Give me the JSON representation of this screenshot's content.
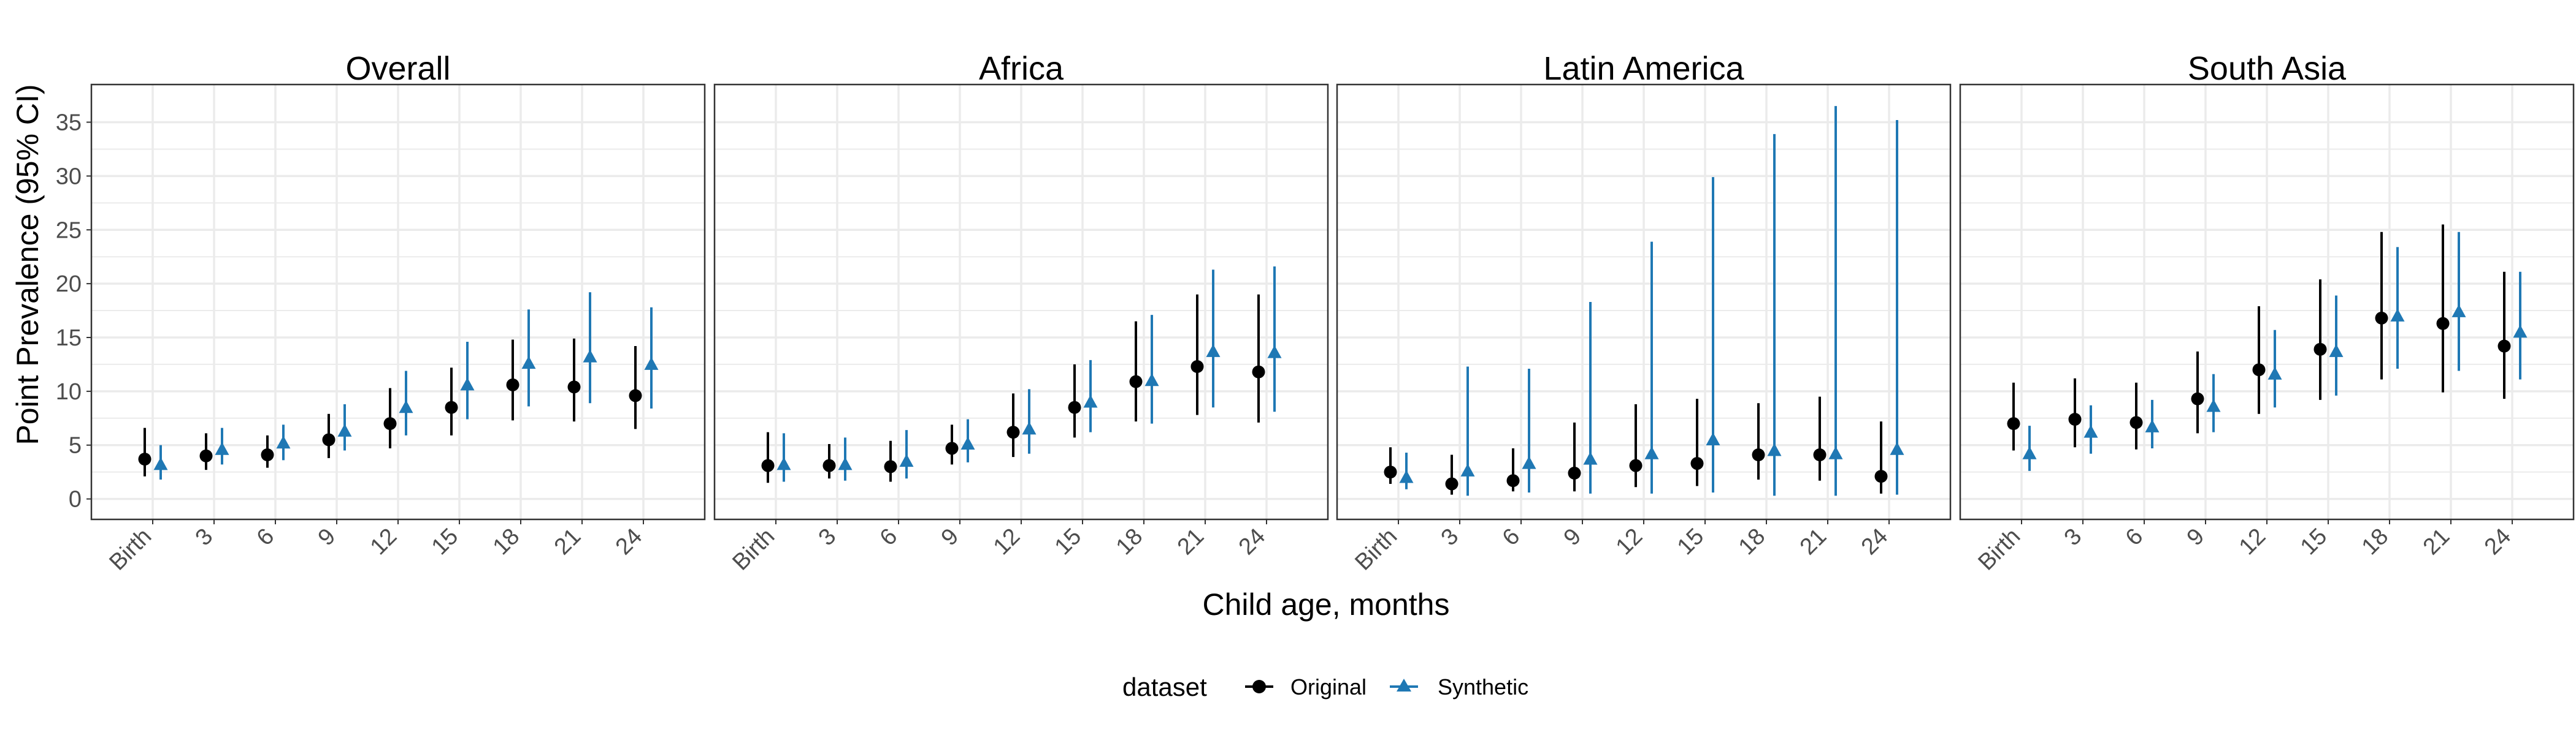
{
  "chart_data": {
    "type": "scatter",
    "facets": [
      {
        "title": "Overall",
        "series": [
          {
            "name": "Original",
            "values": [
              3.7,
              4.0,
              4.1,
              5.5,
              7.0,
              8.5,
              10.6,
              10.4,
              9.6
            ],
            "lower": [
              2.1,
              2.7,
              2.9,
              3.8,
              4.7,
              5.9,
              7.3,
              7.2,
              6.5
            ],
            "upper": [
              6.6,
              6.1,
              5.9,
              7.9,
              10.3,
              12.2,
              14.8,
              14.9,
              14.2
            ]
          },
          {
            "name": "Synthetic",
            "values": [
              3.2,
              4.6,
              5.2,
              6.3,
              8.5,
              10.6,
              12.6,
              13.2,
              12.5
            ],
            "lower": [
              1.8,
              3.2,
              3.6,
              4.5,
              5.9,
              7.4,
              8.6,
              8.9,
              8.4
            ],
            "upper": [
              5.0,
              6.6,
              6.9,
              8.8,
              11.9,
              14.6,
              17.6,
              19.2,
              17.8
            ]
          }
        ]
      },
      {
        "title": "Africa",
        "series": [
          {
            "name": "Original",
            "values": [
              3.1,
              3.1,
              3.0,
              4.7,
              6.2,
              8.5,
              10.9,
              12.3,
              11.8
            ],
            "lower": [
              1.5,
              1.9,
              1.6,
              3.2,
              3.9,
              5.7,
              7.2,
              7.8,
              7.1
            ],
            "upper": [
              6.2,
              5.1,
              5.4,
              6.9,
              9.8,
              12.5,
              16.5,
              19.0,
              19.0
            ]
          },
          {
            "name": "Synthetic",
            "values": [
              3.2,
              3.2,
              3.5,
              5.1,
              6.5,
              9.0,
              11.0,
              13.7,
              13.6
            ],
            "lower": [
              1.6,
              1.7,
              1.9,
              3.4,
              4.2,
              6.2,
              7.0,
              8.5,
              8.1
            ],
            "upper": [
              6.1,
              5.7,
              6.4,
              7.4,
              10.2,
              12.9,
              17.1,
              21.3,
              21.6
            ]
          }
        ]
      },
      {
        "title": "Latin America",
        "series": [
          {
            "name": "Original",
            "values": [
              2.5,
              1.4,
              1.7,
              2.4,
              3.1,
              3.3,
              4.1,
              4.1,
              2.1
            ],
            "lower": [
              1.4,
              0.4,
              0.7,
              0.7,
              1.1,
              1.2,
              1.8,
              1.7,
              0.5
            ],
            "upper": [
              4.8,
              4.1,
              4.7,
              7.1,
              8.8,
              9.3,
              8.9,
              9.5,
              7.2
            ]
          },
          {
            "name": "Synthetic",
            "values": [
              2.0,
              2.6,
              3.3,
              3.7,
              4.2,
              5.5,
              4.5,
              4.2,
              4.6
            ],
            "lower": [
              0.9,
              0.3,
              0.6,
              0.5,
              0.5,
              0.6,
              0.3,
              0.3,
              0.4
            ],
            "upper": [
              4.3,
              12.3,
              12.1,
              18.3,
              23.9,
              29.9,
              33.9,
              36.5,
              35.2
            ]
          }
        ]
      },
      {
        "title": "South Asia",
        "series": [
          {
            "name": "Original",
            "values": [
              7.0,
              7.4,
              7.1,
              9.3,
              12.0,
              13.9,
              16.8,
              16.3,
              14.2
            ],
            "lower": [
              4.5,
              4.8,
              4.6,
              6.1,
              7.9,
              9.2,
              11.1,
              9.9,
              9.3
            ],
            "upper": [
              10.8,
              11.2,
              10.8,
              13.7,
              17.9,
              20.4,
              24.8,
              25.5,
              21.1
            ]
          },
          {
            "name": "Synthetic",
            "values": [
              4.2,
              6.2,
              6.7,
              8.6,
              11.6,
              13.7,
              17.0,
              17.4,
              15.5
            ],
            "lower": [
              2.6,
              4.2,
              4.7,
              6.2,
              8.5,
              9.6,
              12.1,
              11.9,
              11.1
            ],
            "upper": [
              6.8,
              8.7,
              9.2,
              11.6,
              15.7,
              18.9,
              23.4,
              24.8,
              21.1
            ]
          }
        ]
      }
    ],
    "categories": [
      "Birth",
      "3",
      "6",
      "9",
      "12",
      "15",
      "18",
      "21",
      "24"
    ],
    "yticks": [
      0,
      5,
      10,
      15,
      20,
      25,
      30,
      35
    ],
    "ylim": [
      -1.9,
      38.5
    ],
    "ylabel": "Point Prevalence (95% CI)",
    "xlabel": "Child age, months",
    "legend": {
      "title": "dataset",
      "placement": "bottom",
      "entries": [
        "Original",
        "Synthetic"
      ]
    },
    "colors": {
      "Original": "#000000",
      "Synthetic": "#1f78b4",
      "grid": "#ebebeb",
      "panel_border": "#333333"
    },
    "grid": true
  }
}
